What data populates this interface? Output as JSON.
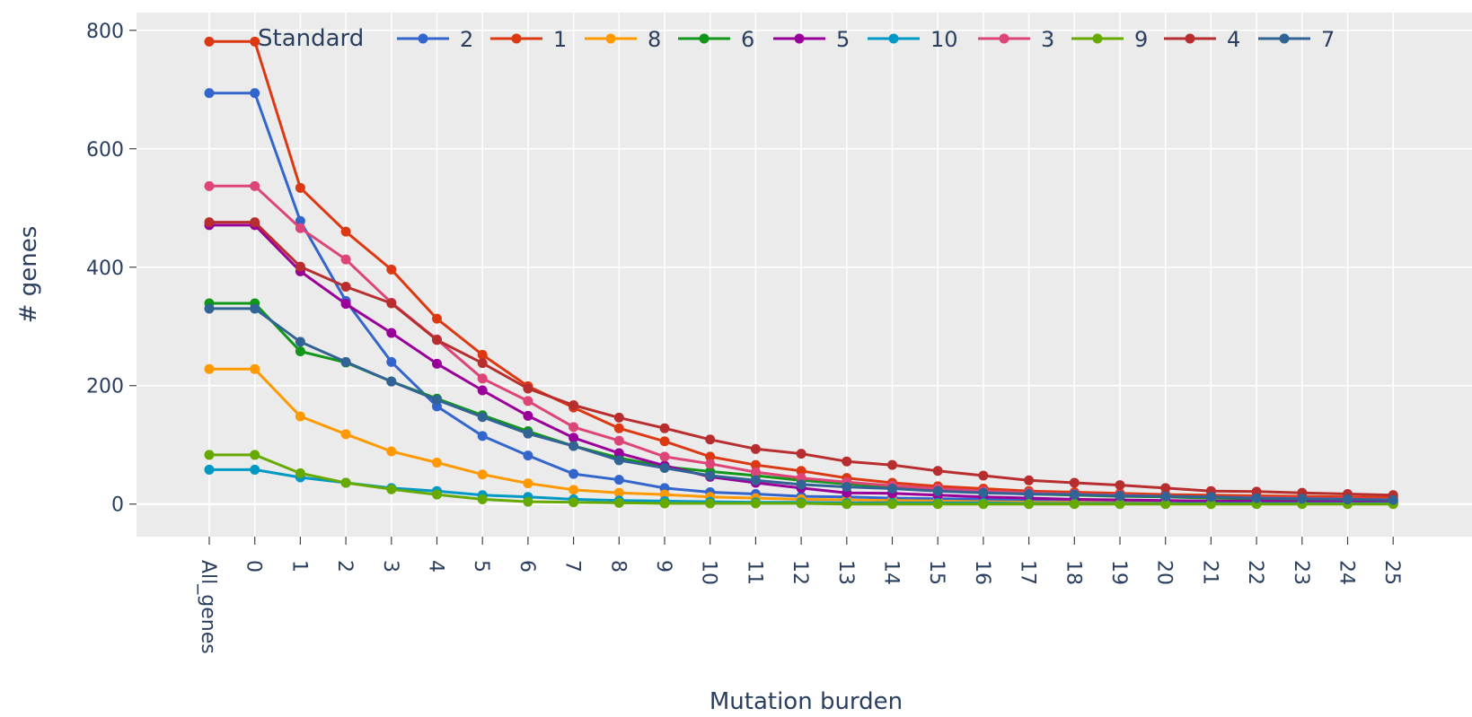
{
  "chart_data": {
    "type": "line",
    "title": "",
    "xlabel": "Mutation burden",
    "ylabel": "# genes",
    "legend_title": "Standard",
    "legend_placement": "top",
    "grid": true,
    "ylim": [
      -55,
      830
    ],
    "y_ticks": [
      0,
      200,
      400,
      600,
      800
    ],
    "categories": [
      "All_genes",
      "0",
      "1",
      "2",
      "3",
      "4",
      "5",
      "6",
      "7",
      "8",
      "9",
      "10",
      "11",
      "12",
      "13",
      "14",
      "15",
      "16",
      "17",
      "18",
      "19",
      "20",
      "21",
      "22",
      "23",
      "24",
      "25"
    ],
    "series": [
      {
        "name": "2",
        "color": "#3366cc",
        "values": [
          694,
          694,
          478,
          343,
          240,
          165,
          115,
          82,
          51,
          41,
          27,
          20,
          17,
          13,
          12,
          10,
          9,
          8,
          7,
          6,
          6,
          5,
          4,
          4,
          3,
          3,
          3
        ]
      },
      {
        "name": "1",
        "color": "#dc3912",
        "values": [
          781,
          781,
          534,
          460,
          396,
          313,
          252,
          199,
          163,
          128,
          106,
          80,
          66,
          56,
          44,
          36,
          30,
          26,
          22,
          20,
          18,
          16,
          15,
          14,
          13,
          12,
          11
        ]
      },
      {
        "name": "8",
        "color": "#ff9900",
        "values": [
          228,
          228,
          148,
          118,
          89,
          70,
          50,
          35,
          24,
          19,
          16,
          12,
          10,
          8,
          7,
          6,
          5,
          4,
          3,
          3,
          2,
          2,
          2,
          2,
          1,
          1,
          1
        ]
      },
      {
        "name": "6",
        "color": "#109618",
        "values": [
          339,
          339,
          258,
          239,
          207,
          178,
          150,
          123,
          98,
          78,
          63,
          55,
          48,
          40,
          34,
          29,
          24,
          20,
          17,
          15,
          13,
          12,
          10,
          9,
          8,
          7,
          6
        ]
      },
      {
        "name": "5",
        "color": "#990099",
        "values": [
          471,
          471,
          393,
          338,
          289,
          237,
          192,
          149,
          112,
          86,
          65,
          46,
          36,
          27,
          19,
          18,
          15,
          12,
          10,
          8,
          7,
          6,
          5,
          5,
          4,
          4,
          3
        ]
      },
      {
        "name": "10",
        "color": "#0099c6",
        "values": [
          58,
          58,
          45,
          36,
          27,
          22,
          15,
          12,
          8,
          6,
          5,
          4,
          3,
          3,
          2,
          2,
          2,
          2,
          1,
          1,
          1,
          1,
          1,
          1,
          1,
          1,
          1
        ]
      },
      {
        "name": "3",
        "color": "#dd4477",
        "values": [
          537,
          537,
          466,
          413,
          340,
          278,
          212,
          174,
          130,
          107,
          80,
          68,
          54,
          44,
          37,
          31,
          26,
          22,
          19,
          17,
          15,
          13,
          12,
          11,
          10,
          9,
          8
        ]
      },
      {
        "name": "9",
        "color": "#66aa00",
        "values": [
          83,
          83,
          52,
          36,
          25,
          16,
          8,
          4,
          3,
          2,
          1,
          1,
          1,
          1,
          0,
          0,
          0,
          0,
          0,
          0,
          0,
          0,
          0,
          0,
          0,
          0,
          0
        ]
      },
      {
        "name": "4",
        "color": "#b82e2e",
        "values": [
          476,
          476,
          401,
          367,
          339,
          277,
          238,
          195,
          167,
          146,
          128,
          109,
          93,
          85,
          72,
          66,
          56,
          48,
          40,
          36,
          32,
          27,
          22,
          21,
          19,
          17,
          15
        ]
      },
      {
        "name": "7",
        "color": "#316395",
        "values": [
          330,
          330,
          274,
          240,
          207,
          176,
          147,
          119,
          98,
          74,
          61,
          48,
          40,
          33,
          29,
          26,
          22,
          19,
          17,
          16,
          14,
          13,
          12,
          10,
          9,
          8,
          7
        ]
      }
    ]
  }
}
